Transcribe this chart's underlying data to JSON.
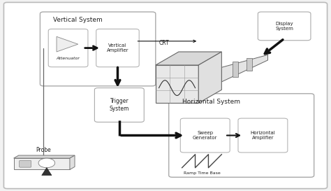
{
  "bg_color": "#f2f2f2",
  "box_face_color": "#ffffff",
  "box_edge_color": "#999999",
  "arrow_color": "#111111",
  "text_color": "#222222",
  "labels": {
    "vertical_system": "Vertical System",
    "attenuator": "Attenuator",
    "vertical_amplifier": "Vertical\nAmplifier",
    "trigger_system": "Trigger\nSystem",
    "horizontal_system": "Horizontal System",
    "sweep_generator": "Sweep\nGenerator",
    "horizontal_amplifier": "Horizontal\nAmplifier",
    "ramp_time_base": "Ramp Time Base",
    "display_system": "Display\nSystem",
    "crt": "CRT",
    "probe": "Probe"
  },
  "font_sizes": {
    "system_label": 6.5,
    "component_label": 5.5,
    "small_label": 5.0,
    "tiny_label": 4.5
  }
}
